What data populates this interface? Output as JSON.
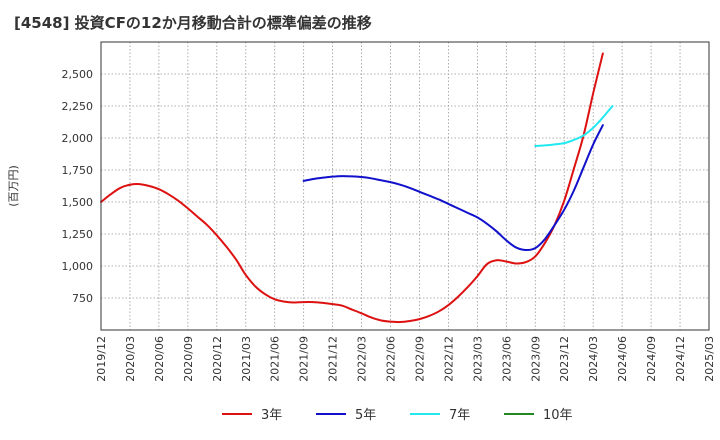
{
  "chart_data": {
    "type": "line",
    "title": "[4548]  投資CFの12か月移動合計の標準偏差の推移",
    "ylabel": "(百万円)",
    "ylim": [
      500,
      2750
    ],
    "yticks": [
      750,
      1000,
      1250,
      1500,
      1750,
      2000,
      2250,
      2500
    ],
    "ytick_labels": [
      "750",
      "1,000",
      "1,250",
      "1,500",
      "1,750",
      "2,000",
      "2,250",
      "2,500"
    ],
    "xlim": [
      "2019/12",
      "2025/03"
    ],
    "xtick_labels": [
      "2019/12",
      "2020/03",
      "2020/06",
      "2020/09",
      "2020/12",
      "2021/03",
      "2021/06",
      "2021/09",
      "2021/12",
      "2022/03",
      "2022/06",
      "2022/09",
      "2022/12",
      "2023/03",
      "2023/06",
      "2023/09",
      "2023/12",
      "2024/03",
      "2024/06",
      "2024/09",
      "2024/12",
      "2025/03"
    ],
    "grid": true,
    "legend_position": "bottom",
    "series": [
      {
        "name": "3年",
        "color": "#dd1111",
        "points": [
          [
            "2019/12",
            1500
          ],
          [
            "2020/01",
            1560
          ],
          [
            "2020/02",
            1610
          ],
          [
            "2020/03",
            1635
          ],
          [
            "2020/04",
            1640
          ],
          [
            "2020/05",
            1625
          ],
          [
            "2020/06",
            1600
          ],
          [
            "2020/07",
            1560
          ],
          [
            "2020/08",
            1510
          ],
          [
            "2020/09",
            1450
          ],
          [
            "2020/10",
            1385
          ],
          [
            "2020/11",
            1320
          ],
          [
            "2020/12",
            1240
          ],
          [
            "2021/01",
            1150
          ],
          [
            "2021/02",
            1050
          ],
          [
            "2021/03",
            930
          ],
          [
            "2021/04",
            840
          ],
          [
            "2021/05",
            780
          ],
          [
            "2021/06",
            740
          ],
          [
            "2021/07",
            722
          ],
          [
            "2021/08",
            715
          ],
          [
            "2021/09",
            718
          ],
          [
            "2021/10",
            718
          ],
          [
            "2021/11",
            712
          ],
          [
            "2021/12",
            702
          ],
          [
            "2022/01",
            690
          ],
          [
            "2022/02",
            660
          ],
          [
            "2022/03",
            630
          ],
          [
            "2022/04",
            598
          ],
          [
            "2022/05",
            575
          ],
          [
            "2022/06",
            565
          ],
          [
            "2022/07",
            562
          ],
          [
            "2022/08",
            570
          ],
          [
            "2022/09",
            585
          ],
          [
            "2022/10",
            610
          ],
          [
            "2022/11",
            645
          ],
          [
            "2022/12",
            695
          ],
          [
            "2023/01",
            760
          ],
          [
            "2023/02",
            835
          ],
          [
            "2023/03",
            920
          ],
          [
            "2023/04",
            1015
          ],
          [
            "2023/05",
            1045
          ],
          [
            "2023/06",
            1035
          ],
          [
            "2023/07",
            1020
          ],
          [
            "2023/08",
            1030
          ],
          [
            "2023/09",
            1075
          ],
          [
            "2023/10",
            1180
          ],
          [
            "2023/11",
            1320
          ],
          [
            "2023/12",
            1510
          ],
          [
            "2024/01",
            1760
          ],
          [
            "2024/02",
            2020
          ],
          [
            "2024/03",
            2350
          ],
          [
            "2024/04",
            2660
          ]
        ]
      },
      {
        "name": "5年",
        "color": "#1111cc",
        "points": [
          [
            "2021/09",
            1665
          ],
          [
            "2021/10",
            1680
          ],
          [
            "2021/11",
            1690
          ],
          [
            "2021/12",
            1698
          ],
          [
            "2022/01",
            1702
          ],
          [
            "2022/02",
            1700
          ],
          [
            "2022/03",
            1695
          ],
          [
            "2022/04",
            1685
          ],
          [
            "2022/05",
            1670
          ],
          [
            "2022/06",
            1655
          ],
          [
            "2022/07",
            1635
          ],
          [
            "2022/08",
            1610
          ],
          [
            "2022/09",
            1580
          ],
          [
            "2022/10",
            1550
          ],
          [
            "2022/11",
            1520
          ],
          [
            "2022/12",
            1485
          ],
          [
            "2023/01",
            1450
          ],
          [
            "2023/02",
            1415
          ],
          [
            "2023/03",
            1380
          ],
          [
            "2023/04",
            1330
          ],
          [
            "2023/05",
            1270
          ],
          [
            "2023/06",
            1200
          ],
          [
            "2023/07",
            1145
          ],
          [
            "2023/08",
            1125
          ],
          [
            "2023/09",
            1140
          ],
          [
            "2023/10",
            1210
          ],
          [
            "2023/11",
            1320
          ],
          [
            "2023/12",
            1440
          ],
          [
            "2024/01",
            1590
          ],
          [
            "2024/02",
            1770
          ],
          [
            "2024/03",
            1950
          ],
          [
            "2024/04",
            2100
          ]
        ]
      },
      {
        "name": "7年",
        "color": "#22e8f0",
        "points": [
          [
            "2023/09",
            1938
          ],
          [
            "2023/10",
            1942
          ],
          [
            "2023/11",
            1950
          ],
          [
            "2023/12",
            1960
          ],
          [
            "2024/01",
            1985
          ],
          [
            "2024/02",
            2020
          ],
          [
            "2024/03",
            2080
          ],
          [
            "2024/04",
            2160
          ],
          [
            "2024/05",
            2250
          ]
        ]
      },
      {
        "name": "10年",
        "color": "#228822",
        "points": []
      }
    ]
  }
}
